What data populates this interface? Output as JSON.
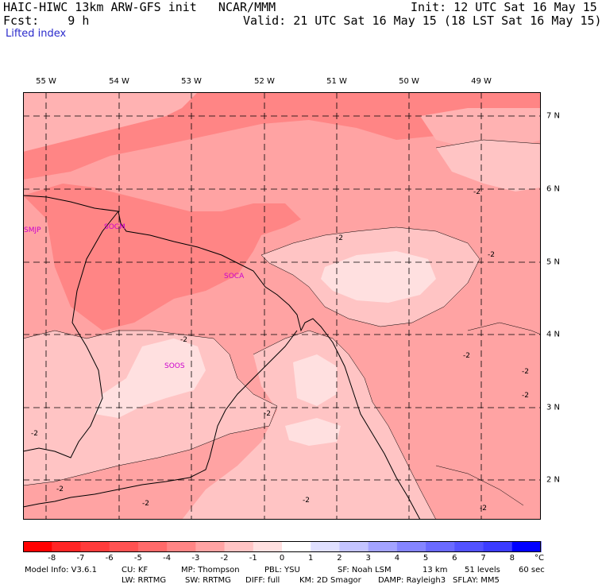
{
  "header": {
    "left_line1": "HAIC-HIWC 13km ARW-GFS init   NCAR/MMM",
    "left_line2": "Fcst:    9 h",
    "right_line1": "Init: 12 UTC Sat 16 May 15",
    "right_line2": "Valid: 21 UTC Sat 16 May 15 (18 LST Sat 16 May 15)",
    "field": "Lifted index"
  },
  "axes": {
    "longitudes": [
      "55 W",
      "54 W",
      "53 W",
      "52 W",
      "51 W",
      "50 W",
      "49 W"
    ],
    "latitudes": [
      "7 N",
      "6 N",
      "5 N",
      "4 N",
      "3 N",
      "2 N"
    ]
  },
  "stations": [
    "SMJP",
    "SOCM",
    "SOCA",
    "SOOS"
  ],
  "contour_labels": [
    "-2",
    "-2",
    "-2",
    "-2",
    "-2",
    "-2",
    "-2",
    "-2",
    "-2",
    "-2",
    "-2",
    "-2",
    "-2"
  ],
  "colorbar": {
    "ticks": [
      "-8",
      "-7",
      "-6",
      "-5",
      "-4",
      "-3",
      "-2",
      "-1",
      "0",
      "1",
      "2",
      "3",
      "4",
      "5",
      "6",
      "7",
      "8"
    ],
    "unit": "°C",
    "colors": [
      "#ff0000",
      "#ff2525",
      "#ff3c3c",
      "#ff5252",
      "#ff6a6a",
      "#ff8585",
      "#ffa3a3",
      "#ffc4c4",
      "#ffe0e0",
      "#ffffff",
      "#e0e0ff",
      "#c4c4ff",
      "#a3a3ff",
      "#8585ff",
      "#6a6aff",
      "#5252ff",
      "#3c3cff",
      "#0000ff"
    ]
  },
  "footer": {
    "line1": [
      "Model Info: V3.6.1",
      "CU: KF",
      "MP: Thompson",
      "PBL: YSU",
      "SF: Noah LSM",
      "13 km",
      "51 levels",
      "60 sec"
    ],
    "line2": [
      "LW: RRTMG",
      "SW: RRTMG",
      "DIFF: full",
      "KM: 2D Smagor",
      "DAMP: Rayleigh3",
      "SFLAY: MM5"
    ]
  }
}
